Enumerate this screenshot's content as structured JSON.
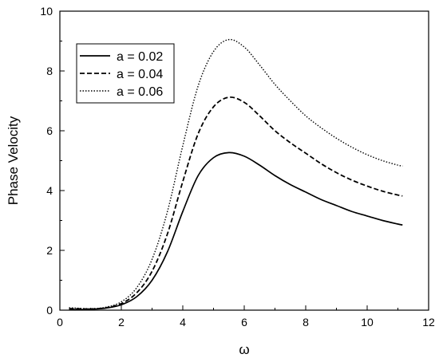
{
  "chart_data": {
    "type": "line",
    "title": "",
    "xlabel": "ω",
    "ylabel": "Phase Velocity",
    "xlim": [
      0,
      12
    ],
    "ylim": [
      0,
      10
    ],
    "x_ticks": [
      "0",
      "2",
      "4",
      "6",
      "8",
      "10",
      "12"
    ],
    "y_ticks": [
      "0",
      "2",
      "4",
      "6",
      "8",
      "10"
    ],
    "grid": false,
    "legend_position": "top-left",
    "series": [
      {
        "name": "a = 0.02",
        "line_style": "solid",
        "color": "#000000",
        "x": [
          0.3,
          0.5,
          1.0,
          1.5,
          2.0,
          2.5,
          3.0,
          3.5,
          4.0,
          4.5,
          5.0,
          5.5,
          6.0,
          6.5,
          7.0,
          7.5,
          8.0,
          8.5,
          9.0,
          9.5,
          10.0,
          10.5,
          11.0,
          11.15
        ],
        "y": [
          0.02,
          0.02,
          0.03,
          0.07,
          0.18,
          0.45,
          1.0,
          1.95,
          3.3,
          4.5,
          5.1,
          5.27,
          5.15,
          4.85,
          4.5,
          4.2,
          3.95,
          3.7,
          3.5,
          3.3,
          3.15,
          3.0,
          2.88,
          2.85
        ]
      },
      {
        "name": "a = 0.04",
        "line_style": "dashed",
        "color": "#000000",
        "x": [
          0.3,
          0.5,
          1.0,
          1.5,
          2.0,
          2.5,
          3.0,
          3.5,
          4.0,
          4.5,
          5.0,
          5.5,
          6.0,
          6.5,
          7.0,
          7.5,
          8.0,
          8.5,
          9.0,
          9.5,
          10.0,
          10.5,
          11.0,
          11.15
        ],
        "y": [
          0.05,
          0.05,
          0.04,
          0.08,
          0.22,
          0.58,
          1.3,
          2.55,
          4.3,
          5.9,
          6.8,
          7.12,
          6.95,
          6.5,
          6.0,
          5.6,
          5.25,
          4.9,
          4.6,
          4.35,
          4.15,
          3.98,
          3.85,
          3.82
        ]
      },
      {
        "name": "a = 0.06",
        "line_style": "dotted",
        "color": "#000000",
        "x": [
          0.3,
          0.5,
          1.0,
          1.5,
          2.0,
          2.5,
          3.0,
          3.5,
          4.0,
          4.5,
          5.0,
          5.5,
          6.0,
          6.5,
          7.0,
          7.5,
          8.0,
          8.5,
          9.0,
          9.5,
          10.0,
          10.5,
          11.0,
          11.15
        ],
        "y": [
          0.08,
          0.07,
          0.05,
          0.1,
          0.28,
          0.75,
          1.7,
          3.3,
          5.5,
          7.5,
          8.65,
          9.05,
          8.8,
          8.2,
          7.55,
          7.0,
          6.5,
          6.1,
          5.75,
          5.45,
          5.2,
          5.0,
          4.85,
          4.82
        ]
      }
    ]
  }
}
